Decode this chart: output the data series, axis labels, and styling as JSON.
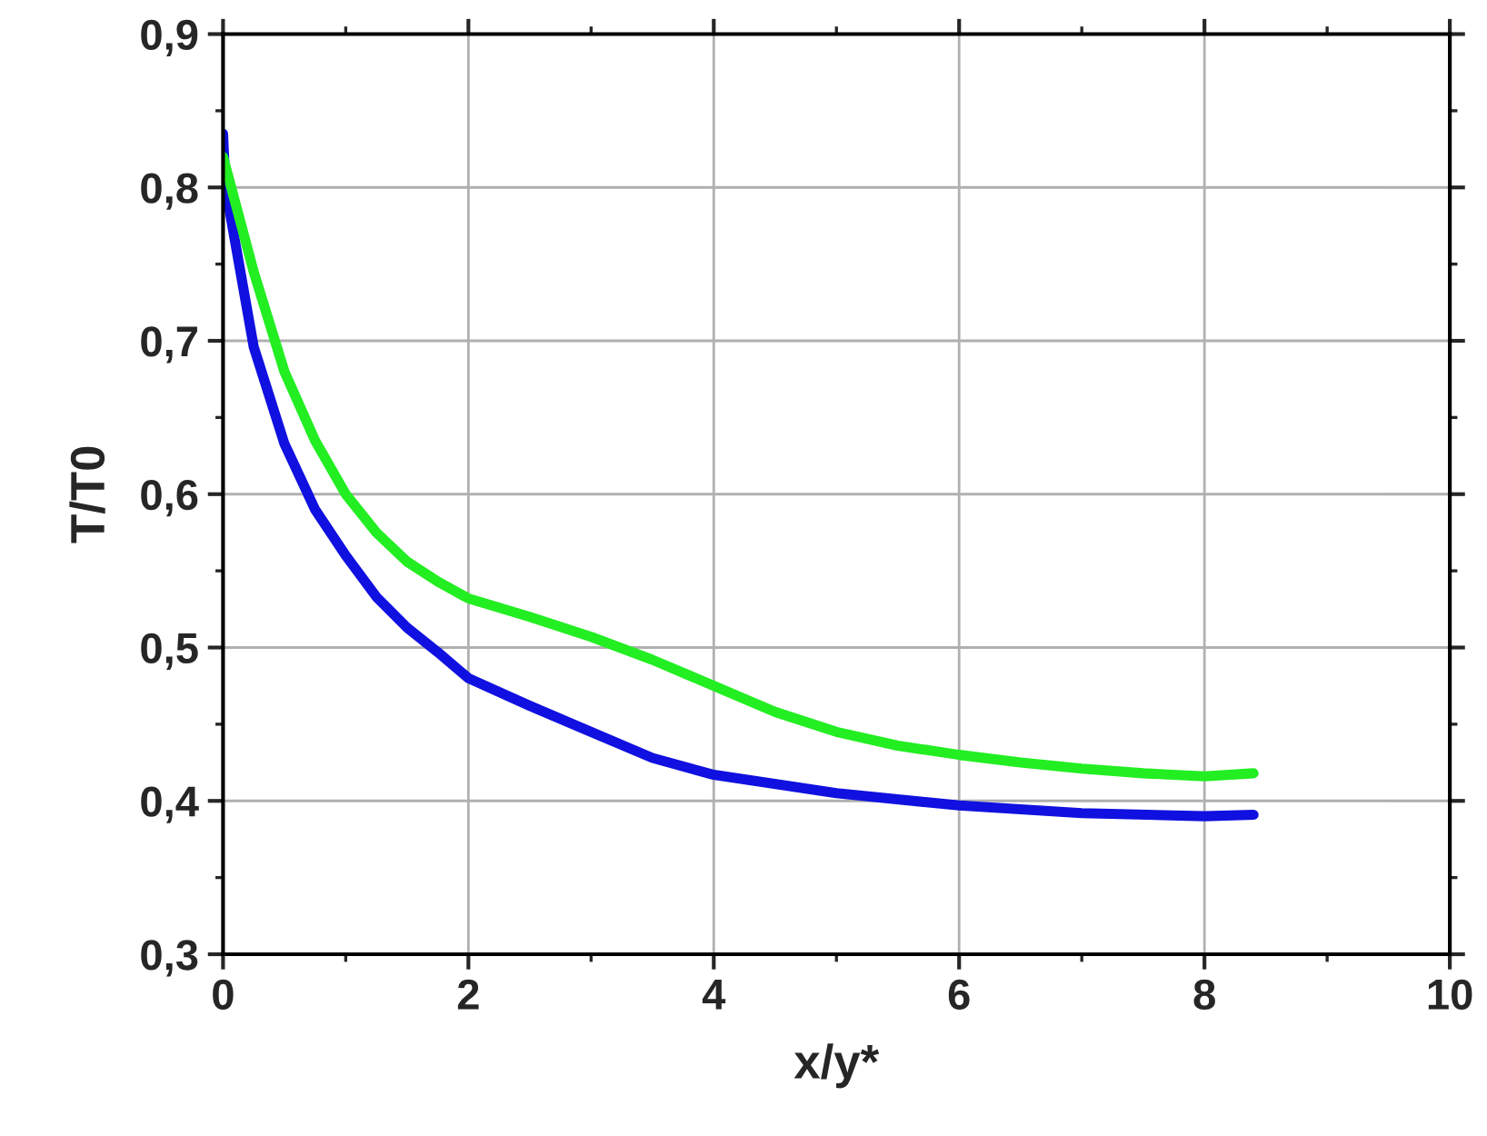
{
  "chart_data": {
    "type": "line",
    "xlabel": "x/y*",
    "ylabel": "T/T0",
    "xlim": [
      0,
      10
    ],
    "xticks": [
      0,
      2,
      4,
      6,
      8,
      10
    ],
    "ylim": [
      0.3,
      0.9
    ],
    "yticks": [
      {
        "value": 0.3,
        "label": "0,3"
      },
      {
        "value": 0.4,
        "label": "0,4"
      },
      {
        "value": 0.5,
        "label": "0,5"
      },
      {
        "value": 0.6,
        "label": "0,6"
      },
      {
        "value": 0.7,
        "label": "0,7"
      },
      {
        "value": 0.8,
        "label": "0,8"
      },
      {
        "value": 0.9,
        "label": "0,9"
      }
    ],
    "grid": true,
    "marker": "none",
    "line_style": "solid",
    "series": [
      {
        "color": "#1010e0",
        "x": [
          0,
          0.02,
          0.25,
          0.5,
          0.75,
          1,
          1.25,
          1.5,
          1.75,
          2,
          2.5,
          3,
          3.5,
          4,
          5,
          6,
          7,
          8,
          8.4
        ],
        "values": [
          0.835,
          0.8,
          0.696,
          0.633,
          0.59,
          0.56,
          0.533,
          0.513,
          0.497,
          0.48,
          0.462,
          0.445,
          0.428,
          0.417,
          0.405,
          0.397,
          0.392,
          0.39,
          0.391
        ]
      },
      {
        "color": "#22ee22",
        "x": [
          0,
          0.25,
          0.5,
          0.75,
          1,
          1.25,
          1.5,
          1.75,
          2,
          2.5,
          3,
          3.5,
          4,
          4.5,
          5,
          5.5,
          6,
          6.5,
          7,
          7.5,
          8,
          8.4
        ],
        "values": [
          0.82,
          0.745,
          0.68,
          0.635,
          0.6,
          0.575,
          0.556,
          0.543,
          0.532,
          0.52,
          0.507,
          0.492,
          0.475,
          0.458,
          0.445,
          0.436,
          0.43,
          0.425,
          0.421,
          0.418,
          0.416,
          0.418
        ]
      }
    ]
  }
}
